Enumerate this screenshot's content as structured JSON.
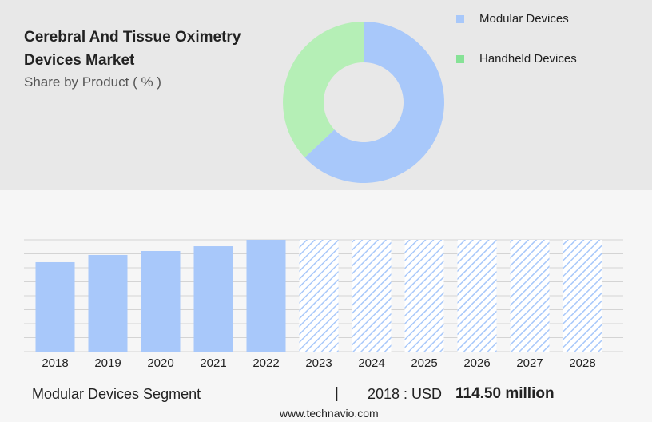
{
  "chart_data": [
    {
      "type": "pie",
      "title": "Cerebral And Tissue Oximetry Devices Market",
      "subtitle": "Share by Product ( % )",
      "categories": [
        "Modular Devices",
        "Handheld Devices"
      ],
      "values": [
        63,
        37
      ],
      "colors": [
        "#a8c8fa",
        "#b5efb6"
      ],
      "legend_colors": [
        "#a8c8fa",
        "#86e296"
      ],
      "donut": true
    },
    {
      "type": "bar",
      "categories": [
        "2018",
        "2019",
        "2020",
        "2021",
        "2022",
        "2023",
        "2024",
        "2025",
        "2026",
        "2027",
        "2028"
      ],
      "values": [
        114.5,
        123.7,
        128.8,
        134.9,
        143.1,
        null,
        null,
        null,
        null,
        null,
        null
      ],
      "color": "#a8c8fa",
      "ylim": [
        0,
        143.1
      ],
      "grid": true
    }
  ],
  "footer": {
    "segment": "Modular Devices Segment",
    "separator": "|",
    "year_label": "2018 : USD",
    "value": "114.50 million"
  },
  "source": "www.technavio.com"
}
